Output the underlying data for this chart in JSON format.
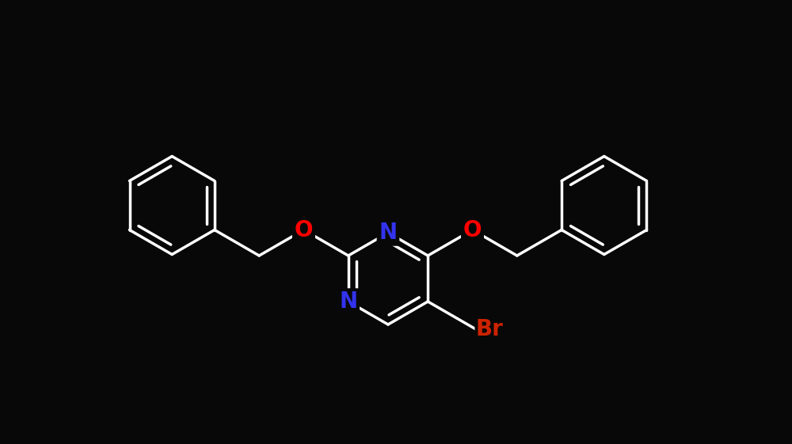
{
  "background_color": "#080808",
  "bond_color": "#ffffff",
  "N_color": "#3333ee",
  "O_color": "#ff0000",
  "Br_color": "#cc2200",
  "bond_lw": 2.5,
  "figsize": [
    10.0,
    5.61
  ],
  "dpi": 100,
  "xlim": [
    0,
    1000
  ],
  "ylim": [
    0,
    561
  ]
}
